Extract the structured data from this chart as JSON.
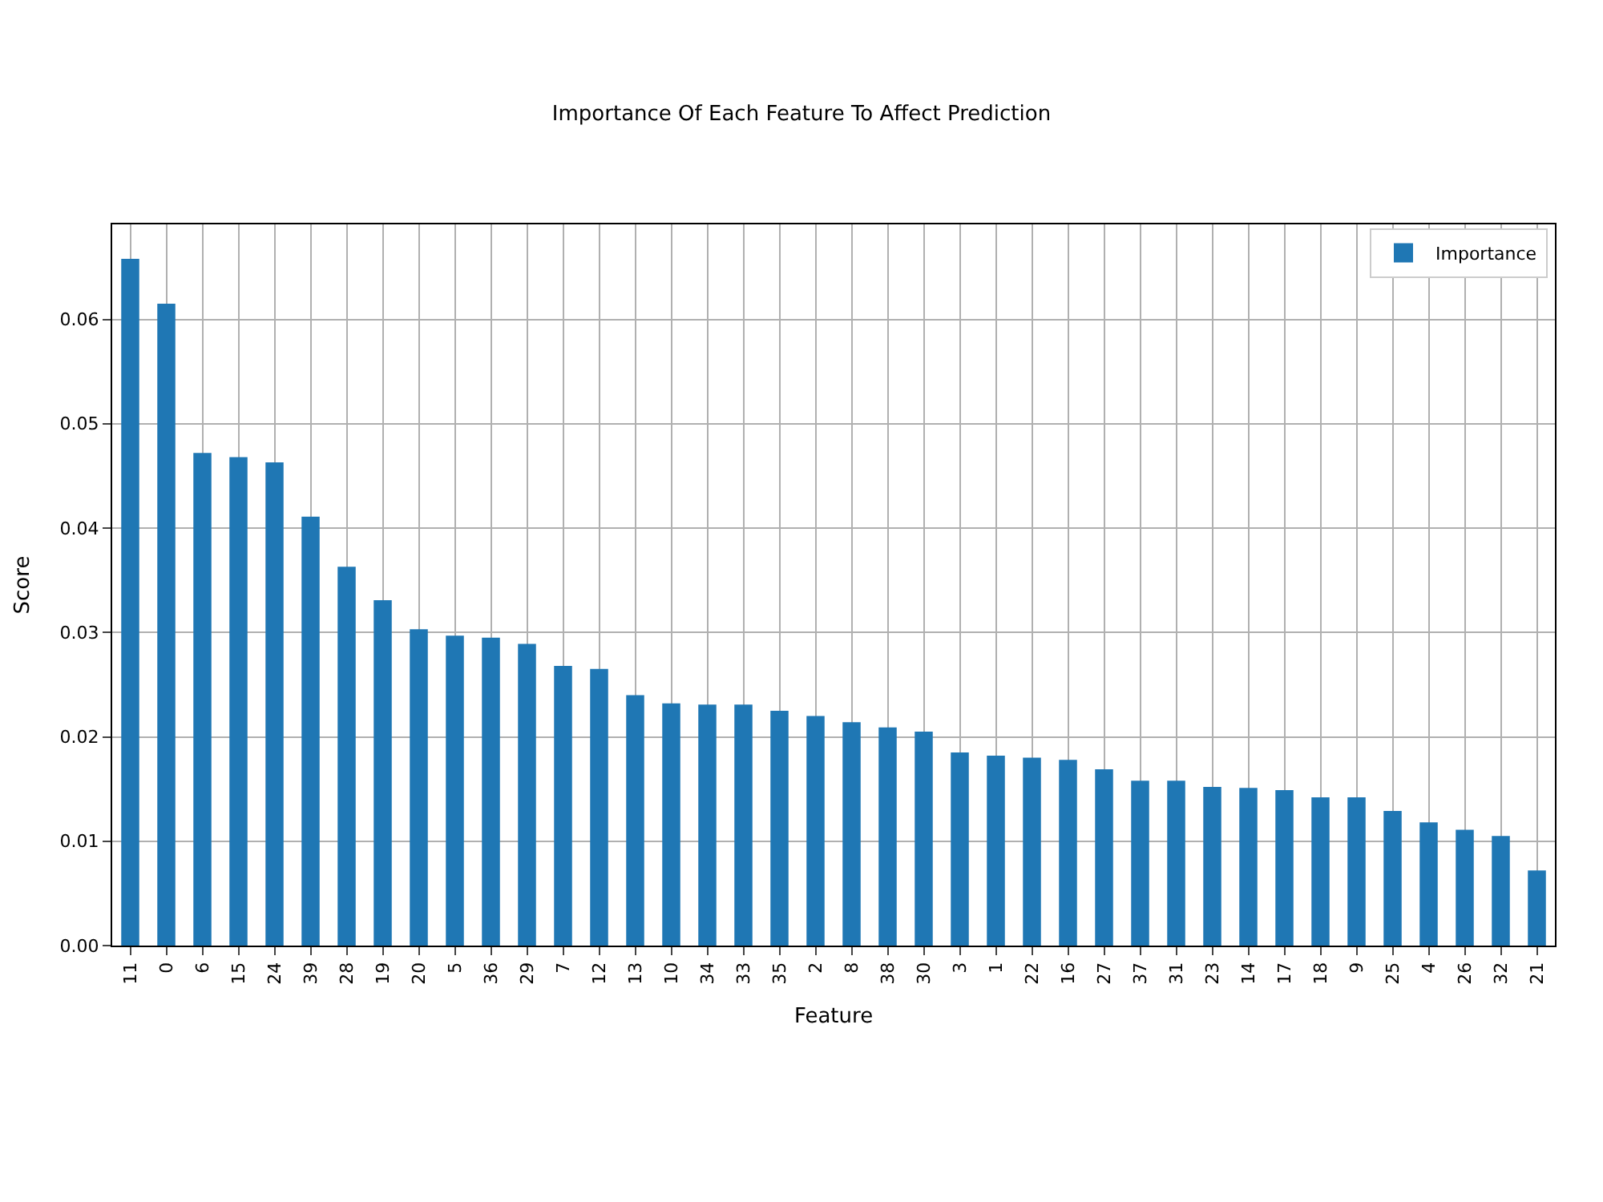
{
  "chart_data": {
    "type": "bar",
    "title": "Importance Of Each Feature To Affect Prediction",
    "xlabel": "Feature",
    "ylabel": "Score",
    "categories": [
      "11",
      "0",
      "6",
      "15",
      "24",
      "39",
      "28",
      "19",
      "20",
      "5",
      "36",
      "29",
      "7",
      "12",
      "13",
      "10",
      "34",
      "33",
      "35",
      "2",
      "8",
      "38",
      "30",
      "3",
      "1",
      "22",
      "16",
      "27",
      "37",
      "31",
      "23",
      "14",
      "17",
      "18",
      "9",
      "25",
      "4",
      "26",
      "32",
      "21"
    ],
    "series": [
      {
        "name": "Importance",
        "color": "#1f77b4",
        "values": [
          0.0658,
          0.0615,
          0.0472,
          0.0468,
          0.0463,
          0.0411,
          0.0363,
          0.0331,
          0.0303,
          0.0297,
          0.0295,
          0.0289,
          0.0268,
          0.0265,
          0.024,
          0.0232,
          0.0231,
          0.0231,
          0.0225,
          0.022,
          0.0214,
          0.0209,
          0.0205,
          0.0185,
          0.0182,
          0.018,
          0.0178,
          0.0169,
          0.0158,
          0.0158,
          0.0152,
          0.0151,
          0.0149,
          0.0142,
          0.0142,
          0.0129,
          0.0118,
          0.0111,
          0.0105,
          0.0072
        ]
      }
    ],
    "ylim": [
      0,
      0.0691
    ],
    "yticks": [
      {
        "value": 0,
        "label": "0.00"
      },
      {
        "value": 0.01,
        "label": "0.01"
      },
      {
        "value": 0.02,
        "label": "0.02"
      },
      {
        "value": 0.03,
        "label": "0.03"
      },
      {
        "value": 0.04,
        "label": "0.04"
      },
      {
        "value": 0.05,
        "label": "0.05"
      },
      {
        "value": 0.06,
        "label": "0.06"
      }
    ],
    "grid": true,
    "legend": "top right"
  }
}
